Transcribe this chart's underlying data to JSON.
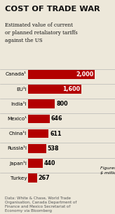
{
  "title": "COST OF TRADE WAR",
  "subtitle": "Estimated value of current\nor planned retaliatory tariffs\nagainst the US",
  "categories": [
    "Canada",
    "EU",
    "India",
    "Mexico",
    "China",
    "Russia",
    "Japan",
    "Turkey"
  ],
  "superscripts": [
    "¹",
    "¹l",
    "¹l",
    "¹",
    "¹l",
    "¹l",
    "¹l",
    ""
  ],
  "values": [
    2000,
    1600,
    800,
    646,
    611,
    538,
    440,
    267
  ],
  "labels": [
    "2,000",
    "1,600",
    "800",
    "646",
    "611",
    "538",
    "440",
    "267"
  ],
  "bar_color": "#b30000",
  "bg_color": "#ede8da",
  "title_color": "#111111",
  "subtitle_color": "#111111",
  "footer_color": "#555555",
  "footer": "Data: White & Chase, World Trade\nOrganisation, Canada Department of\nFinance and Mexico Secretariat of\nEconomy via Bloomberg",
  "figures_note": "Figures in\n$ million"
}
